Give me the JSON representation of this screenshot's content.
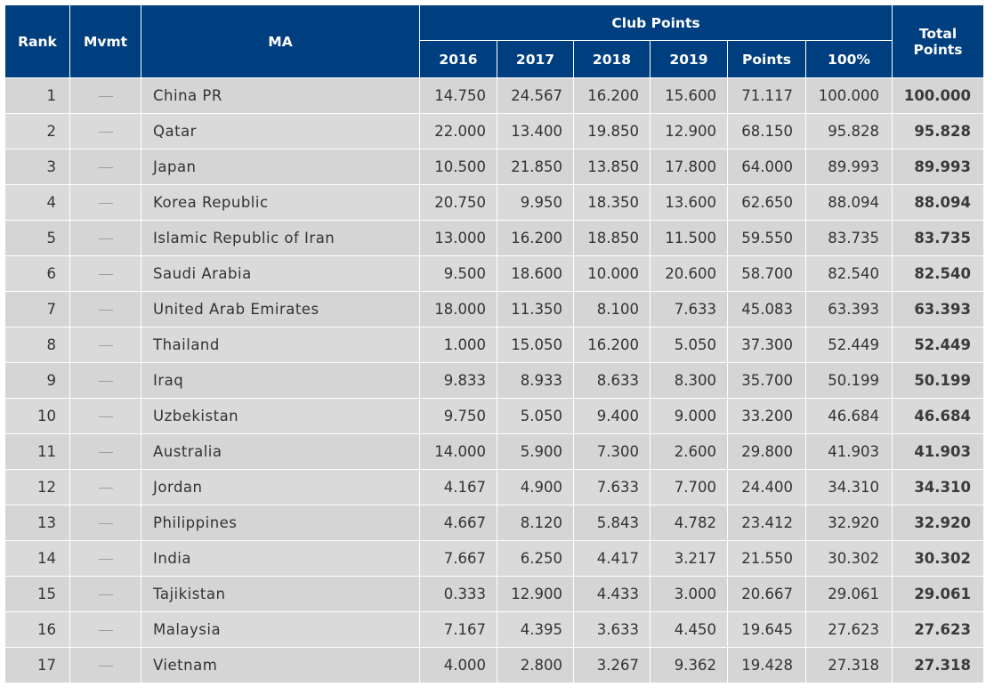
{
  "header": {
    "rank": "Rank",
    "mvmt": "Mvmt",
    "ma": "MA",
    "club_points": "Club Points",
    "total_line1": "Total",
    "total_line2": "Points",
    "years": [
      "2016",
      "2017",
      "2018",
      "2019"
    ],
    "points": "Points",
    "pct": "100%"
  },
  "rows": [
    {
      "rank": "1",
      "ma": "China PR",
      "y2016": "14.750",
      "y2017": "24.567",
      "y2018": "16.200",
      "y2019": "15.600",
      "points": "71.117",
      "pct": "100.000",
      "total": "100.000"
    },
    {
      "rank": "2",
      "ma": "Qatar",
      "y2016": "22.000",
      "y2017": "13.400",
      "y2018": "19.850",
      "y2019": "12.900",
      "points": "68.150",
      "pct": "95.828",
      "total": "95.828"
    },
    {
      "rank": "3",
      "ma": "Japan",
      "y2016": "10.500",
      "y2017": "21.850",
      "y2018": "13.850",
      "y2019": "17.800",
      "points": "64.000",
      "pct": "89.993",
      "total": "89.993"
    },
    {
      "rank": "4",
      "ma": "Korea Republic",
      "y2016": "20.750",
      "y2017": "9.950",
      "y2018": "18.350",
      "y2019": "13.600",
      "points": "62.650",
      "pct": "88.094",
      "total": "88.094"
    },
    {
      "rank": "5",
      "ma": "Islamic Republic of Iran",
      "y2016": "13.000",
      "y2017": "16.200",
      "y2018": "18.850",
      "y2019": "11.500",
      "points": "59.550",
      "pct": "83.735",
      "total": "83.735"
    },
    {
      "rank": "6",
      "ma": "Saudi Arabia",
      "y2016": "9.500",
      "y2017": "18.600",
      "y2018": "10.000",
      "y2019": "20.600",
      "points": "58.700",
      "pct": "82.540",
      "total": "82.540"
    },
    {
      "rank": "7",
      "ma": "United Arab Emirates",
      "y2016": "18.000",
      "y2017": "11.350",
      "y2018": "8.100",
      "y2019": "7.633",
      "points": "45.083",
      "pct": "63.393",
      "total": "63.393"
    },
    {
      "rank": "8",
      "ma": "Thailand",
      "y2016": "1.000",
      "y2017": "15.050",
      "y2018": "16.200",
      "y2019": "5.050",
      "points": "37.300",
      "pct": "52.449",
      "total": "52.449"
    },
    {
      "rank": "9",
      "ma": "Iraq",
      "y2016": "9.833",
      "y2017": "8.933",
      "y2018": "8.633",
      "y2019": "8.300",
      "points": "35.700",
      "pct": "50.199",
      "total": "50.199"
    },
    {
      "rank": "10",
      "ma": "Uzbekistan",
      "y2016": "9.750",
      "y2017": "5.050",
      "y2018": "9.400",
      "y2019": "9.000",
      "points": "33.200",
      "pct": "46.684",
      "total": "46.684"
    },
    {
      "rank": "11",
      "ma": "Australia",
      "y2016": "14.000",
      "y2017": "5.900",
      "y2018": "7.300",
      "y2019": "2.600",
      "points": "29.800",
      "pct": "41.903",
      "total": "41.903"
    },
    {
      "rank": "12",
      "ma": "Jordan",
      "y2016": "4.167",
      "y2017": "4.900",
      "y2018": "7.633",
      "y2019": "7.700",
      "points": "24.400",
      "pct": "34.310",
      "total": "34.310"
    },
    {
      "rank": "13",
      "ma": "Philippines",
      "y2016": "4.667",
      "y2017": "8.120",
      "y2018": "5.843",
      "y2019": "4.782",
      "points": "23.412",
      "pct": "32.920",
      "total": "32.920"
    },
    {
      "rank": "14",
      "ma": "India",
      "y2016": "7.667",
      "y2017": "6.250",
      "y2018": "4.417",
      "y2019": "3.217",
      "points": "21.550",
      "pct": "30.302",
      "total": "30.302"
    },
    {
      "rank": "15",
      "ma": "Tajikistan",
      "y2016": "0.333",
      "y2017": "12.900",
      "y2018": "4.433",
      "y2019": "3.000",
      "points": "20.667",
      "pct": "29.061",
      "total": "29.061"
    },
    {
      "rank": "16",
      "ma": "Malaysia",
      "y2016": "7.167",
      "y2017": "4.395",
      "y2018": "3.633",
      "y2019": "4.450",
      "points": "19.645",
      "pct": "27.623",
      "total": "27.623"
    },
    {
      "rank": "17",
      "ma": "Vietnam",
      "y2016": "4.000",
      "y2017": "2.800",
      "y2018": "3.267",
      "y2019": "9.362",
      "points": "19.428",
      "pct": "27.318",
      "total": "27.318"
    }
  ],
  "colors": {
    "header_bg": "#003f7f",
    "header_text": "#ffffff",
    "row_bg": "#d9d9d9"
  },
  "icons": {
    "mvmt": "dash-icon"
  }
}
